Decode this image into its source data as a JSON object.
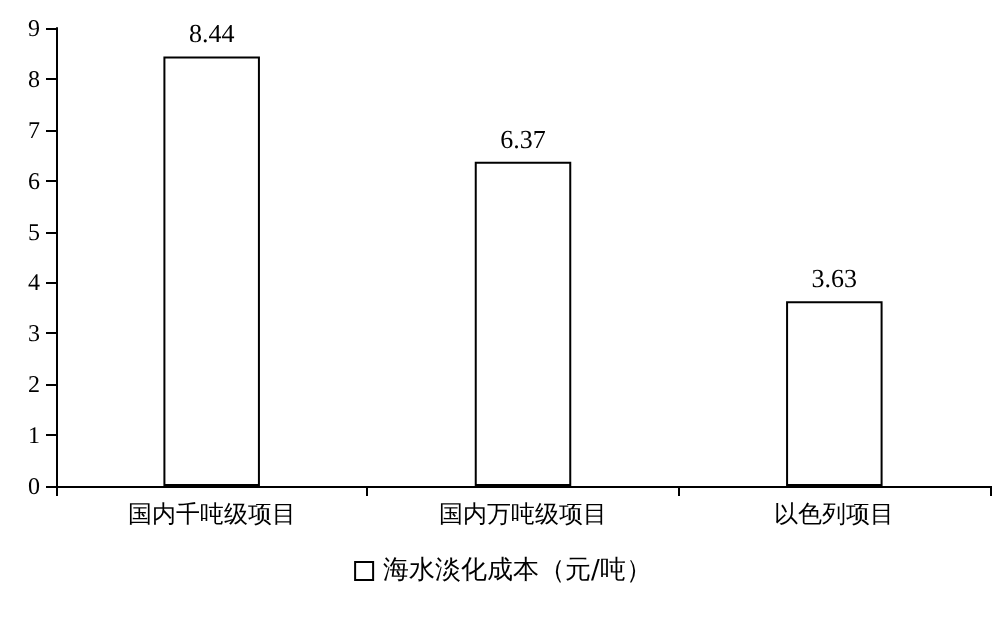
{
  "chart_data": {
    "type": "bar",
    "categories": [
      "国内千吨级项目",
      "国内万吨级项目",
      "以色列项目"
    ],
    "series": [
      {
        "name": "海水淡化成本（元/吨）",
        "color": "#ffffff",
        "values": [
          8.44,
          6.37,
          3.63
        ]
      }
    ],
    "ylim": [
      0,
      9
    ],
    "yticks": [
      0,
      1,
      2,
      3,
      4,
      5,
      6,
      7,
      8,
      9
    ],
    "grid": false,
    "legend": "bottom",
    "data_labels": true
  }
}
